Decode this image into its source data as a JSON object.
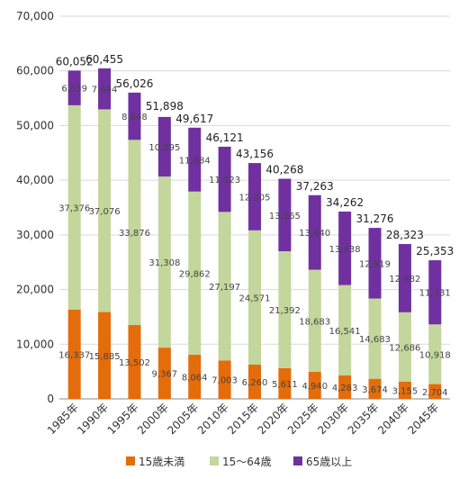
{
  "chart_data": {
    "type": "bar",
    "stacked": true,
    "categories": [
      "1985年",
      "1990年",
      "1995年",
      "2000年",
      "2005年",
      "2010年",
      "2015年",
      "2020年",
      "2025年",
      "2030年",
      "2035年",
      "2040年",
      "2045年"
    ],
    "series": [
      {
        "name": "15歳未満",
        "color": "#E46C0A",
        "values": [
          16337,
          15885,
          13502,
          9367,
          8064,
          7003,
          6260,
          5611,
          4940,
          4283,
          3674,
          3155,
          2704
        ]
      },
      {
        "name": "15～64歳",
        "color": "#C3D69B",
        "values": [
          37376,
          37076,
          33876,
          31308,
          29862,
          27197,
          24571,
          21392,
          18683,
          16541,
          14683,
          12686,
          10918
        ]
      },
      {
        "name": "65歳以上",
        "color": "#7030A0",
        "values": [
          6339,
          7494,
          8648,
          10895,
          11684,
          11923,
          12305,
          13265,
          13640,
          13438,
          12919,
          12482,
          11731
        ]
      }
    ],
    "totals": [
      60052,
      60455,
      56026,
      51898,
      49617,
      46121,
      43156,
      40268,
      37263,
      34262,
      31276,
      28323,
      25353
    ],
    "yticks": [
      0,
      10000,
      20000,
      30000,
      40000,
      50000,
      60000,
      70000
    ],
    "ylim": [
      0,
      70000
    ],
    "grid": true,
    "legend": "bottom",
    "title": "",
    "xlabel": "",
    "ylabel": ""
  }
}
